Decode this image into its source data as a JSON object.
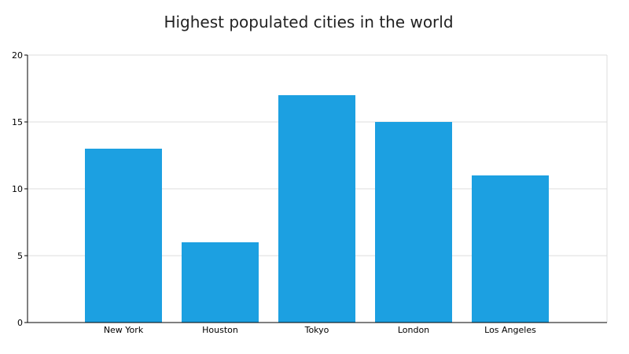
{
  "chart_data": {
    "type": "bar",
    "title": "Highest populated cities in the world",
    "xlabel": "",
    "ylabel": "",
    "categories": [
      "New York",
      "Houston",
      "Tokyo",
      "London",
      "Los Angeles"
    ],
    "values": [
      13,
      6,
      17,
      15,
      11
    ],
    "ylim": [
      0,
      20
    ],
    "yticks": [
      0,
      5,
      10,
      15,
      20
    ],
    "grid": true,
    "legend": "none",
    "bar_color": "#1ca0e1",
    "grid_color": "#dcdcdc",
    "axis_color": "#000000"
  }
}
